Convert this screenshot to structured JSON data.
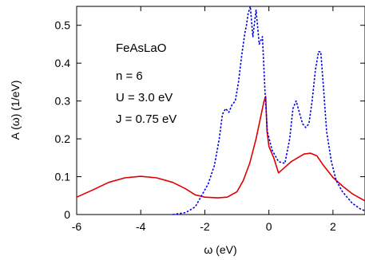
{
  "chart_data": {
    "type": "line",
    "xlabel": "ω (eV)",
    "ylabel": "A (ω) (1/eV)",
    "xlim": [
      -6,
      3
    ],
    "ylim": [
      0,
      0.55
    ],
    "x_ticks": [
      -6,
      -4,
      -2,
      0,
      2
    ],
    "x_tick_labels": [
      "-6",
      "-4",
      "-2",
      "0",
      "2"
    ],
    "y_ticks": [
      0,
      0.1,
      0.2,
      0.3,
      0.4,
      0.5
    ],
    "y_tick_labels": [
      "0",
      "0.1",
      "0.2",
      "0.3",
      "0.4",
      "0.5"
    ],
    "grid": false,
    "legend": "none",
    "annotations": [
      "FeAsLaO",
      "n = 6",
      "U = 3.0 eV",
      "J = 0.75 eV"
    ],
    "series": [
      {
        "style": "solid",
        "color": "#e00000",
        "points": [
          [
            -6.0,
            0.046
          ],
          [
            -5.5,
            0.065
          ],
          [
            -5.0,
            0.085
          ],
          [
            -4.5,
            0.097
          ],
          [
            -4.0,
            0.101
          ],
          [
            -3.5,
            0.097
          ],
          [
            -3.0,
            0.085
          ],
          [
            -2.6,
            0.068
          ],
          [
            -2.3,
            0.052
          ],
          [
            -2.0,
            0.046
          ],
          [
            -1.6,
            0.044
          ],
          [
            -1.3,
            0.046
          ],
          [
            -1.0,
            0.06
          ],
          [
            -0.8,
            0.09
          ],
          [
            -0.6,
            0.135
          ],
          [
            -0.4,
            0.2
          ],
          [
            -0.25,
            0.26
          ],
          [
            -0.15,
            0.3
          ],
          [
            -0.1,
            0.312
          ],
          [
            -0.06,
            0.22
          ],
          [
            0.0,
            0.18
          ],
          [
            0.15,
            0.15
          ],
          [
            0.3,
            0.11
          ],
          [
            0.5,
            0.125
          ],
          [
            0.7,
            0.14
          ],
          [
            0.9,
            0.15
          ],
          [
            1.1,
            0.16
          ],
          [
            1.3,
            0.162
          ],
          [
            1.5,
            0.155
          ],
          [
            1.7,
            0.13
          ],
          [
            2.0,
            0.098
          ],
          [
            2.3,
            0.075
          ],
          [
            2.6,
            0.055
          ],
          [
            3.0,
            0.036
          ]
        ]
      },
      {
        "style": "dotted",
        "color": "#0000e0",
        "points": [
          [
            -3.0,
            0.0
          ],
          [
            -2.6,
            0.005
          ],
          [
            -2.3,
            0.02
          ],
          [
            -2.1,
            0.05
          ],
          [
            -1.9,
            0.08
          ],
          [
            -1.7,
            0.13
          ],
          [
            -1.55,
            0.2
          ],
          [
            -1.45,
            0.265
          ],
          [
            -1.35,
            0.28
          ],
          [
            -1.25,
            0.27
          ],
          [
            -1.15,
            0.29
          ],
          [
            -1.05,
            0.3
          ],
          [
            -0.95,
            0.35
          ],
          [
            -0.85,
            0.42
          ],
          [
            -0.75,
            0.48
          ],
          [
            -0.7,
            0.5
          ],
          [
            -0.65,
            0.53
          ],
          [
            -0.58,
            0.55
          ],
          [
            -0.5,
            0.47
          ],
          [
            -0.4,
            0.54
          ],
          [
            -0.3,
            0.45
          ],
          [
            -0.2,
            0.47
          ],
          [
            -0.12,
            0.32
          ],
          [
            -0.05,
            0.22
          ],
          [
            0.1,
            0.17
          ],
          [
            0.3,
            0.14
          ],
          [
            0.5,
            0.135
          ],
          [
            0.65,
            0.2
          ],
          [
            0.75,
            0.28
          ],
          [
            0.85,
            0.3
          ],
          [
            0.95,
            0.27
          ],
          [
            1.05,
            0.24
          ],
          [
            1.15,
            0.23
          ],
          [
            1.25,
            0.24
          ],
          [
            1.35,
            0.3
          ],
          [
            1.45,
            0.38
          ],
          [
            1.55,
            0.43
          ],
          [
            1.62,
            0.43
          ],
          [
            1.7,
            0.34
          ],
          [
            1.8,
            0.22
          ],
          [
            1.95,
            0.14
          ],
          [
            2.1,
            0.09
          ],
          [
            2.3,
            0.06
          ],
          [
            2.6,
            0.03
          ],
          [
            2.85,
            0.015
          ],
          [
            3.0,
            0.01
          ]
        ]
      }
    ]
  }
}
